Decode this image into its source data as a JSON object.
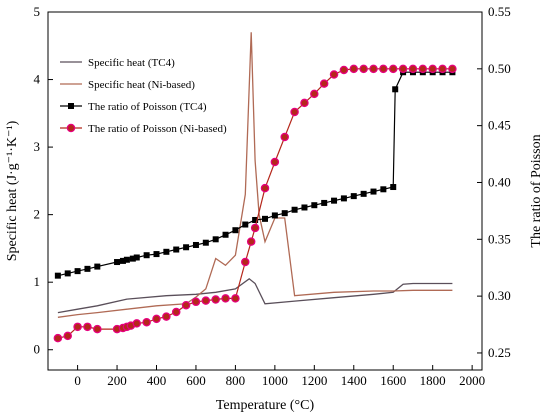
{
  "chart_data": {
    "type": "line",
    "xlabel": "Temperature (°C)",
    "ylabel_left": "Specific heat (J·g⁻¹·K⁻¹)",
    "ylabel_right": "The ratio of Poisson",
    "x_ticks": [
      0,
      200,
      400,
      600,
      800,
      1000,
      1200,
      1400,
      1600,
      1800,
      2000
    ],
    "y_left_ticks": [
      0,
      1,
      2,
      3,
      4,
      5
    ],
    "y_right_ticks": [
      0.25,
      0.3,
      0.35,
      0.4,
      0.45,
      0.5,
      0.55
    ],
    "xlim": [
      -150,
      2050
    ],
    "ylim_left": [
      -0.3,
      5
    ],
    "ylim_right": [
      0.235,
      0.55
    ],
    "legend_position": "upper-left",
    "series": [
      {
        "name": "Specific heat (TC4)",
        "axis": "left",
        "color": "#5a4f5a",
        "marker": "none",
        "x": [
          -100,
          0,
          100,
          250,
          450,
          600,
          700,
          800,
          870,
          900,
          950,
          1100,
          1300,
          1500,
          1600,
          1650,
          1700,
          1900
        ],
        "y": [
          0.55,
          0.6,
          0.65,
          0.75,
          0.8,
          0.82,
          0.85,
          0.9,
          1.05,
          0.98,
          0.68,
          0.72,
          0.77,
          0.82,
          0.85,
          0.97,
          0.98,
          0.98
        ]
      },
      {
        "name": "Specific heat (Ni-based)",
        "axis": "left",
        "color": "#b06a55",
        "marker": "none",
        "x": [
          -100,
          0,
          100,
          250,
          400,
          550,
          600,
          650,
          700,
          750,
          800,
          850,
          880,
          900,
          920,
          950,
          1000,
          1050,
          1100,
          1300,
          1500,
          1600,
          1700,
          1900
        ],
        "y": [
          0.48,
          0.52,
          0.55,
          0.6,
          0.65,
          0.68,
          0.78,
          0.9,
          1.35,
          1.25,
          1.4,
          2.3,
          4.7,
          2.8,
          2.0,
          1.6,
          1.95,
          1.95,
          0.8,
          0.85,
          0.87,
          0.87,
          0.88,
          0.88
        ]
      },
      {
        "name": "The ratio of Poisson (TC4)",
        "axis": "right",
        "color": "#000000",
        "marker": "square",
        "x": [
          -100,
          -50,
          0,
          50,
          100,
          200,
          230,
          250,
          280,
          300,
          350,
          400,
          450,
          500,
          550,
          600,
          650,
          700,
          750,
          800,
          850,
          900,
          950,
          1000,
          1050,
          1100,
          1150,
          1200,
          1250,
          1300,
          1350,
          1400,
          1450,
          1500,
          1550,
          1600,
          1610,
          1650,
          1700,
          1750,
          1800,
          1850,
          1900
        ],
        "y": [
          0.318,
          0.32,
          0.322,
          0.324,
          0.326,
          0.33,
          0.331,
          0.332,
          0.333,
          0.334,
          0.336,
          0.337,
          0.339,
          0.341,
          0.343,
          0.345,
          0.347,
          0.35,
          0.354,
          0.358,
          0.363,
          0.367,
          0.368,
          0.371,
          0.373,
          0.376,
          0.378,
          0.38,
          0.382,
          0.384,
          0.386,
          0.388,
          0.39,
          0.392,
          0.394,
          0.396,
          0.482,
          0.497,
          0.497,
          0.497,
          0.497,
          0.497,
          0.497
        ]
      },
      {
        "name": "The ratio of Poisson (Ni-based)",
        "axis": "right",
        "color": "#b5271b",
        "marker": "circle",
        "x": [
          -100,
          -50,
          0,
          50,
          100,
          200,
          230,
          250,
          270,
          300,
          350,
          400,
          450,
          500,
          550,
          600,
          650,
          700,
          750,
          800,
          850,
          880,
          900,
          950,
          1000,
          1050,
          1100,
          1150,
          1200,
          1250,
          1300,
          1350,
          1400,
          1450,
          1500,
          1550,
          1600,
          1650,
          1700,
          1750,
          1800,
          1850,
          1900
        ],
        "y": [
          0.263,
          0.265,
          0.273,
          0.273,
          0.271,
          0.271,
          0.272,
          0.273,
          0.274,
          0.276,
          0.277,
          0.28,
          0.282,
          0.286,
          0.292,
          0.295,
          0.296,
          0.297,
          0.298,
          0.298,
          0.33,
          0.348,
          0.36,
          0.395,
          0.418,
          0.44,
          0.462,
          0.47,
          0.478,
          0.487,
          0.495,
          0.499,
          0.5,
          0.5,
          0.5,
          0.5,
          0.5,
          0.5,
          0.5,
          0.5,
          0.5,
          0.5,
          0.5
        ]
      }
    ]
  }
}
